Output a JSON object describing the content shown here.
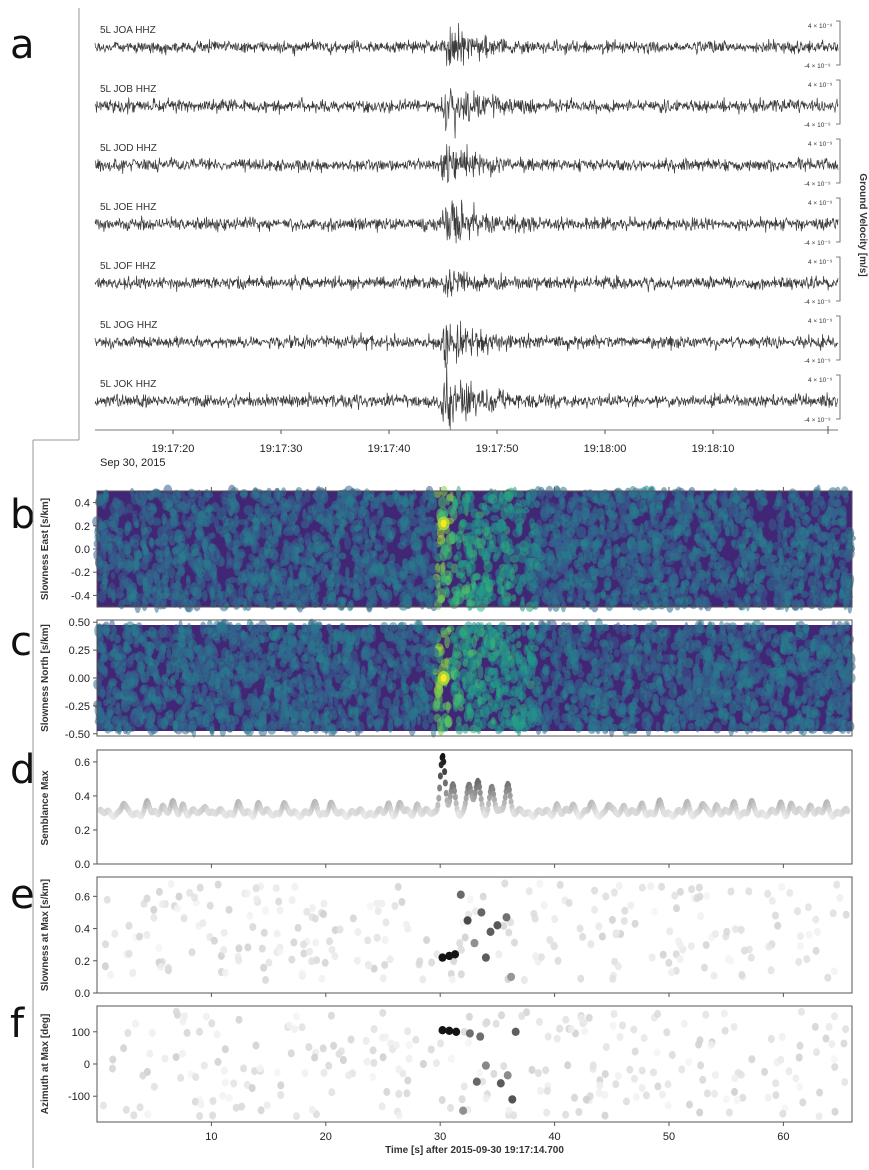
{
  "panel_letters": [
    "a",
    "b",
    "c",
    "d",
    "e",
    "f"
  ],
  "chart_data": [
    {
      "panel": "a",
      "type": "line",
      "traces": [
        {
          "label": "5L JOA  HHZ",
          "event_amplitude": 1.5
        },
        {
          "label": "5L JOB  HHZ",
          "event_amplitude": 1.9
        },
        {
          "label": "5L JOD  HHZ",
          "event_amplitude": 1.6
        },
        {
          "label": "5L JOE  HHZ",
          "event_amplitude": 2.0
        },
        {
          "label": "5L JOF  HHZ",
          "event_amplitude": 0.7
        },
        {
          "label": "5L JOG  HHZ",
          "event_amplitude": 1.8
        },
        {
          "label": "5L JOK  HHZ",
          "event_amplitude": 1.9
        }
      ],
      "trace_scale": {
        "top": "4 × 10⁻⁹",
        "bottom": "-4 × 10⁻⁹"
      },
      "x_ticks": [
        "19:17:20",
        "19:17:30",
        "19:17:40",
        "19:17:50",
        "19:18:00",
        "19:18:10"
      ],
      "date_label": "Sep 30, 2015",
      "ylabel": "Ground Velocity [m/s]"
    },
    {
      "panel": "b",
      "type": "heatmap",
      "ylabel": "Slowness East [s/km]",
      "yticks": [
        "0.4",
        "0.2",
        "0.0",
        "-0.2",
        "-0.4"
      ],
      "ylim": [
        -0.5,
        0.5
      ],
      "peak": {
        "time": 30.3,
        "value": 0.22
      }
    },
    {
      "panel": "c",
      "type": "heatmap",
      "ylabel": "Slowness North [s/km]",
      "yticks": [
        "0.50",
        "0.25",
        "0.00",
        "-0.25",
        "-0.50"
      ],
      "ylim": [
        -0.52,
        0.52
      ],
      "peak": {
        "time": 30.3,
        "value": 0.0
      }
    },
    {
      "panel": "d",
      "type": "line",
      "ylabel": "Semblance Max",
      "yticks": [
        "0.6",
        "0.4",
        "0.2",
        "0.0"
      ],
      "ylim": [
        0,
        0.67
      ],
      "baseline": 0.3,
      "peaks": [
        {
          "time": 30.2,
          "value": 0.64
        },
        {
          "time": 31.1,
          "value": 0.45
        },
        {
          "time": 32.5,
          "value": 0.47
        },
        {
          "time": 33.3,
          "value": 0.49
        },
        {
          "time": 34.5,
          "value": 0.44
        },
        {
          "time": 35.9,
          "value": 0.48
        }
      ]
    },
    {
      "panel": "e",
      "type": "scatter",
      "ylabel": "Slowness at Max [s/km]",
      "yticks": [
        "0.6",
        "0.4",
        "0.2",
        "0.0"
      ],
      "ylim": [
        0,
        0.72
      ],
      "highlight_points": [
        {
          "time": 30.2,
          "value": 0.22
        },
        {
          "time": 30.8,
          "value": 0.23
        },
        {
          "time": 31.3,
          "value": 0.24
        },
        {
          "time": 31.8,
          "value": 0.61
        },
        {
          "time": 32.4,
          "value": 0.45
        },
        {
          "time": 33.0,
          "value": 0.31
        },
        {
          "time": 33.6,
          "value": 0.5
        },
        {
          "time": 34.4,
          "value": 0.38
        },
        {
          "time": 35.0,
          "value": 0.42
        },
        {
          "time": 35.8,
          "value": 0.47
        },
        {
          "time": 36.2,
          "value": 0.1
        },
        {
          "time": 34.0,
          "value": 0.22
        }
      ]
    },
    {
      "panel": "f",
      "type": "scatter",
      "ylabel": "Azimuth at Max [deg]",
      "yticks": [
        "100",
        "0",
        "-100"
      ],
      "ylim": [
        -180,
        180
      ],
      "highlight_points": [
        {
          "time": 30.2,
          "value": 105
        },
        {
          "time": 30.8,
          "value": 103
        },
        {
          "time": 31.4,
          "value": 100
        },
        {
          "time": 32.0,
          "value": -145
        },
        {
          "time": 32.6,
          "value": 95
        },
        {
          "time": 33.5,
          "value": 85
        },
        {
          "time": 34.0,
          "value": -5
        },
        {
          "time": 35.3,
          "value": -60
        },
        {
          "time": 35.9,
          "value": -35
        },
        {
          "time": 36.3,
          "value": -110
        },
        {
          "time": 36.6,
          "value": 100
        },
        {
          "time": 33.2,
          "value": -55
        }
      ],
      "xlabel": "Time [s] after 2015-09-30 19:17:14.700",
      "xticks": [
        "10",
        "20",
        "30",
        "40",
        "50",
        "60"
      ],
      "xlim": [
        0,
        66
      ]
    }
  ]
}
